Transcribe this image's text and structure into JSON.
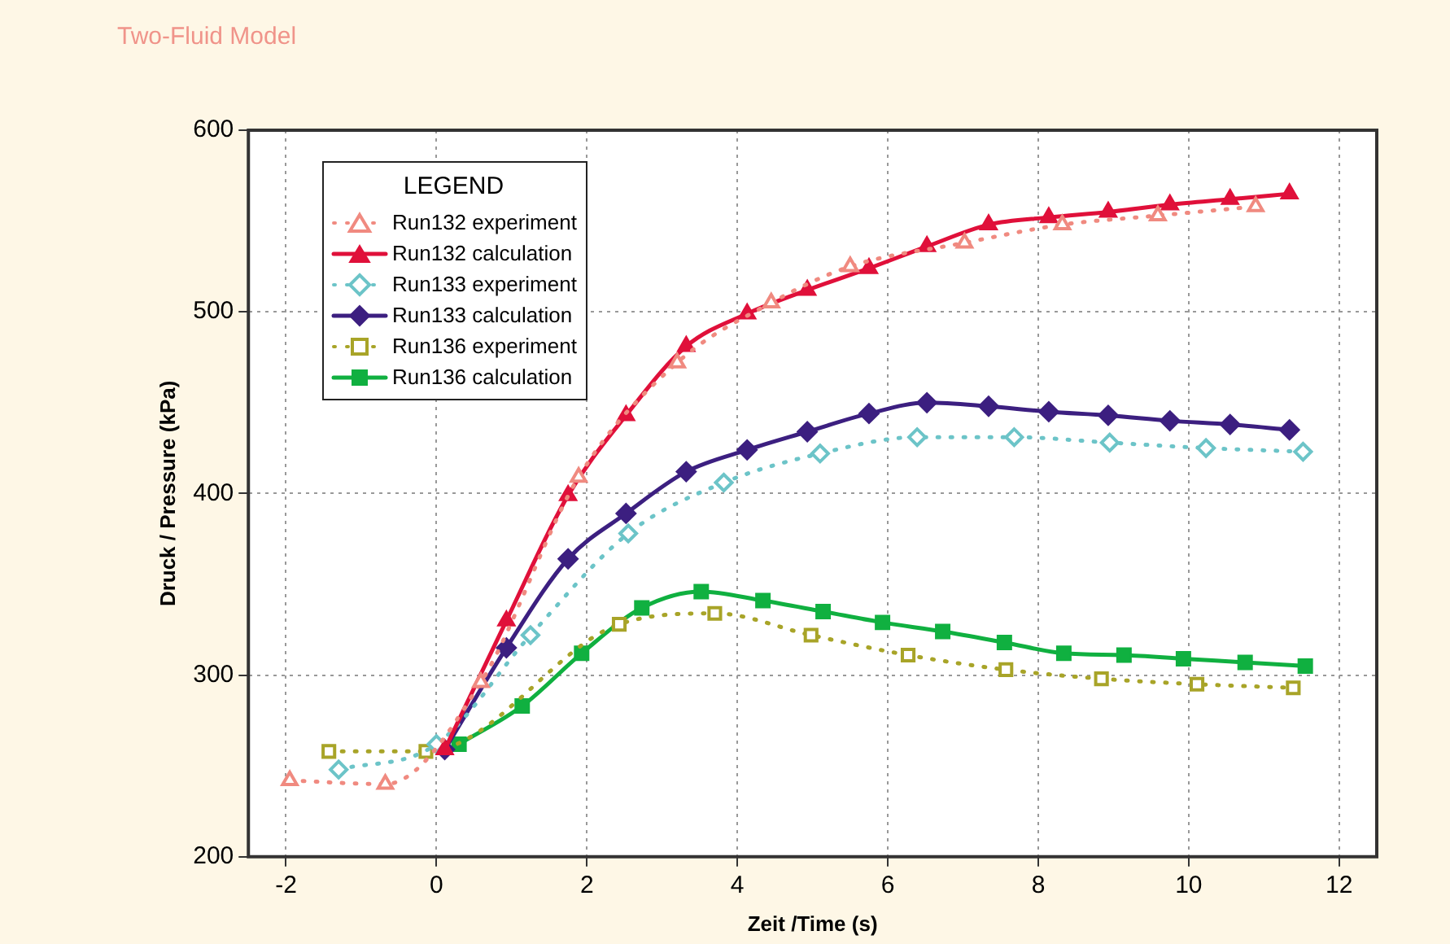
{
  "chart_data": {
    "type": "line",
    "title": "Two-Fluid Model",
    "xlabel": "Zeit /Time (s)",
    "ylabel": "Druck / Pressure (kPa)",
    "legend_title": "LEGEND",
    "legend": "top left",
    "grid": true,
    "xlim": [
      -2.5,
      12.5
    ],
    "xticks": [
      -2,
      0,
      2,
      4,
      6,
      8,
      10,
      12
    ],
    "ylim": [
      200,
      600
    ],
    "yticks": [
      200,
      300,
      400,
      500,
      600
    ],
    "series": [
      {
        "name": "Run132 experiment",
        "color": "#f08a80",
        "marker": "triangle",
        "line_style": "dotted",
        "x": [
          -1.95,
          -0.68,
          0.59,
          1.89,
          3.2,
          4.45,
          5.5,
          7.02,
          8.32,
          9.59,
          10.89
        ],
        "values": [
          242,
          240,
          296,
          409,
          472,
          505,
          525,
          538,
          548,
          553,
          558
        ]
      },
      {
        "name": "Run132 calculation",
        "color": "#e0103a",
        "marker": "triangle",
        "line_style": "solid",
        "x": [
          0.11,
          0.93,
          1.75,
          2.52,
          3.32,
          4.13,
          4.93,
          5.75,
          6.52,
          7.34,
          8.14,
          8.93,
          9.75,
          10.55,
          11.34
        ],
        "values": [
          259,
          330,
          399,
          443,
          481,
          499,
          512,
          524,
          536,
          548,
          552,
          555,
          559,
          562,
          565
        ]
      },
      {
        "name": "Run133 experiment",
        "color": "#6cc4c8",
        "marker": "diamond",
        "line_style": "dotted",
        "x": [
          -1.3,
          0,
          1.25,
          2.55,
          3.82,
          5.1,
          6.39,
          7.68,
          8.95,
          10.23,
          11.52
        ],
        "values": [
          248,
          262,
          322,
          378,
          406,
          422,
          431,
          431,
          428,
          425,
          423
        ]
      },
      {
        "name": "Run133 calculation",
        "color": "#3c1f80",
        "marker": "diamond",
        "line_style": "solid",
        "x": [
          0.11,
          0.93,
          1.75,
          2.52,
          3.32,
          4.13,
          4.93,
          5.75,
          6.52,
          7.34,
          8.14,
          8.93,
          9.75,
          10.55,
          11.34
        ],
        "values": [
          259,
          315,
          364,
          389,
          412,
          424,
          434,
          444,
          450,
          448,
          445,
          443,
          440,
          438,
          435
        ]
      },
      {
        "name": "Run136 experiment",
        "color": "#a8a428",
        "marker": "square",
        "line_style": "dotted",
        "x": [
          -1.43,
          -0.14,
          2.43,
          3.7,
          4.98,
          6.27,
          7.57,
          8.84,
          10.11,
          11.39
        ],
        "values": [
          258,
          258,
          328,
          334,
          322,
          311,
          303,
          298,
          295,
          293
        ]
      },
      {
        "name": "Run136 calculation",
        "color": "#10b040",
        "marker": "square",
        "line_style": "solid",
        "x": [
          0.3,
          1.14,
          1.93,
          2.73,
          3.52,
          4.34,
          5.14,
          5.93,
          6.73,
          7.55,
          8.34,
          9.14,
          9.93,
          10.75,
          11.55
        ],
        "values": [
          262,
          283,
          312,
          337,
          346,
          341,
          335,
          329,
          324,
          318,
          312,
          311,
          309,
          307,
          305
        ]
      }
    ]
  }
}
